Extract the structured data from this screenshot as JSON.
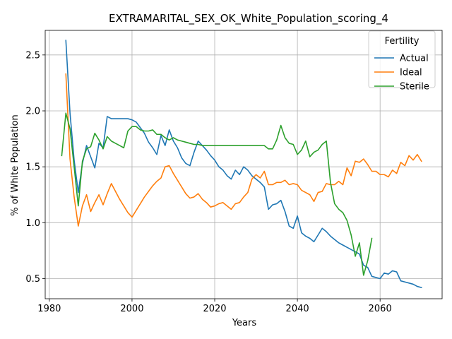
{
  "chart_data": {
    "type": "line",
    "title": "EXTRAMARITAL_SEX_OK_White_Population_scoring_4",
    "xlabel": "Years",
    "ylabel": "% of White Population",
    "xlim": [
      1979,
      2075
    ],
    "ylim": [
      0.32,
      2.72
    ],
    "xticks": [
      1980,
      2000,
      2020,
      2040,
      2060
    ],
    "yticks": [
      0.5,
      1.0,
      1.5,
      2.0,
      2.5
    ],
    "ytick_labels": [
      "0.5",
      "1.0",
      "1.5",
      "2.0",
      "2.5"
    ],
    "grid": true,
    "legend": {
      "title": "Fertility",
      "position": "top-right"
    },
    "series": [
      {
        "name": "Actual",
        "color": "#1f77b4",
        "x": [
          1984,
          1985,
          1986,
          1987,
          1988,
          1989,
          1990,
          1991,
          1992,
          1993,
          1994,
          1995,
          1996,
          1997,
          1998,
          1999,
          2000,
          2001,
          2002,
          2003,
          2004,
          2005,
          2006,
          2007,
          2008,
          2009,
          2010,
          2011,
          2012,
          2013,
          2014,
          2015,
          2016,
          2017,
          2018,
          2019,
          2020,
          2021,
          2022,
          2023,
          2024,
          2025,
          2026,
          2027,
          2028,
          2029,
          2030,
          2031,
          2032,
          2033,
          2034,
          2035,
          2036,
          2037,
          2038,
          2039,
          2040,
          2041,
          2042,
          2043,
          2044,
          2045,
          2046,
          2047,
          2048,
          2049,
          2050,
          2051,
          2052,
          2053,
          2054,
          2055,
          2056,
          2057,
          2058,
          2059,
          2060,
          2061,
          2062,
          2063,
          2064,
          2065,
          2066,
          2067,
          2068,
          2069,
          2070
        ],
        "values": [
          2.63,
          1.98,
          1.56,
          1.27,
          1.53,
          1.69,
          1.59,
          1.49,
          1.71,
          1.67,
          1.95,
          1.93,
          1.93,
          1.93,
          1.93,
          1.93,
          1.92,
          1.9,
          1.85,
          1.8,
          1.72,
          1.67,
          1.61,
          1.78,
          1.69,
          1.83,
          1.73,
          1.67,
          1.58,
          1.53,
          1.51,
          1.63,
          1.73,
          1.69,
          1.65,
          1.6,
          1.56,
          1.5,
          1.47,
          1.42,
          1.39,
          1.47,
          1.43,
          1.5,
          1.47,
          1.42,
          1.39,
          1.36,
          1.32,
          1.12,
          1.16,
          1.17,
          1.2,
          1.1,
          0.97,
          0.95,
          1.06,
          0.91,
          0.88,
          0.86,
          0.83,
          0.89,
          0.95,
          0.92,
          0.88,
          0.85,
          0.82,
          0.8,
          0.78,
          0.76,
          0.74,
          0.72,
          0.62,
          0.6,
          0.52,
          0.51,
          0.5,
          0.55,
          0.54,
          0.57,
          0.56,
          0.48,
          0.47,
          0.46,
          0.45,
          0.43,
          0.42
        ]
      },
      {
        "name": "Ideal",
        "color": "#ff7f0e",
        "x": [
          1984,
          1985,
          1986,
          1987,
          1988,
          1989,
          1990,
          1991,
          1992,
          1993,
          1994,
          1995,
          1996,
          1997,
          1998,
          1999,
          2000,
          2001,
          2002,
          2003,
          2004,
          2005,
          2006,
          2007,
          2008,
          2009,
          2010,
          2011,
          2012,
          2013,
          2014,
          2015,
          2016,
          2017,
          2018,
          2019,
          2020,
          2021,
          2022,
          2023,
          2024,
          2025,
          2026,
          2027,
          2028,
          2029,
          2030,
          2031,
          2032,
          2033,
          2034,
          2035,
          2036,
          2037,
          2038,
          2039,
          2040,
          2041,
          2042,
          2043,
          2044,
          2045,
          2046,
          2047,
          2048,
          2049,
          2050,
          2051,
          2052,
          2053,
          2054,
          2055,
          2056,
          2057,
          2058,
          2059,
          2060,
          2061,
          2062,
          2063,
          2064,
          2065,
          2066,
          2067,
          2068,
          2069,
          2070
        ],
        "values": [
          2.33,
          1.57,
          1.23,
          0.97,
          1.15,
          1.25,
          1.1,
          1.18,
          1.25,
          1.16,
          1.26,
          1.35,
          1.28,
          1.21,
          1.15,
          1.09,
          1.05,
          1.11,
          1.17,
          1.23,
          1.28,
          1.33,
          1.37,
          1.4,
          1.5,
          1.51,
          1.44,
          1.38,
          1.32,
          1.26,
          1.22,
          1.23,
          1.26,
          1.21,
          1.18,
          1.14,
          1.15,
          1.17,
          1.18,
          1.15,
          1.12,
          1.17,
          1.18,
          1.23,
          1.27,
          1.39,
          1.43,
          1.4,
          1.46,
          1.34,
          1.34,
          1.36,
          1.36,
          1.38,
          1.34,
          1.35,
          1.34,
          1.29,
          1.27,
          1.25,
          1.19,
          1.27,
          1.28,
          1.35,
          1.34,
          1.34,
          1.37,
          1.34,
          1.49,
          1.42,
          1.55,
          1.54,
          1.57,
          1.52,
          1.46,
          1.46,
          1.43,
          1.43,
          1.41,
          1.47,
          1.44,
          1.54,
          1.51,
          1.6,
          1.56,
          1.61,
          1.55
        ]
      },
      {
        "name": "Sterile",
        "color": "#2ca02c",
        "x": [
          1983,
          1984,
          1985,
          1986,
          1987,
          1988,
          1989,
          1990,
          1991,
          1992,
          1993,
          1994,
          1995,
          1996,
          1997,
          1998,
          1999,
          2000,
          2001,
          2002,
          2003,
          2004,
          2005,
          2006,
          2007,
          2008,
          2009,
          2010,
          2011,
          2012,
          2013,
          2014,
          2015,
          2016,
          2017,
          2018,
          2019,
          2020,
          2021,
          2022,
          2023,
          2024,
          2025,
          2026,
          2027,
          2028,
          2029,
          2030,
          2031,
          2032,
          2033,
          2034,
          2035,
          2036,
          2037,
          2038,
          2039,
          2040,
          2041,
          2042,
          2043,
          2044,
          2045,
          2046,
          2047,
          2048,
          2049,
          2050,
          2051,
          2052,
          2053,
          2054,
          2055,
          2056,
          2057,
          2058
        ],
        "values": [
          1.6,
          1.98,
          1.84,
          1.5,
          1.15,
          1.55,
          1.66,
          1.68,
          1.8,
          1.74,
          1.66,
          1.77,
          1.73,
          1.71,
          1.69,
          1.67,
          1.82,
          1.86,
          1.86,
          1.83,
          1.82,
          1.82,
          1.83,
          1.79,
          1.79,
          1.76,
          1.74,
          1.76,
          1.74,
          1.73,
          1.72,
          1.71,
          1.7,
          1.7,
          1.69,
          1.69,
          1.69,
          1.69,
          1.69,
          1.69,
          1.69,
          1.69,
          1.69,
          1.69,
          1.69,
          1.69,
          1.69,
          1.69,
          1.69,
          1.69,
          1.66,
          1.66,
          1.74,
          1.87,
          1.76,
          1.71,
          1.7,
          1.61,
          1.65,
          1.73,
          1.59,
          1.63,
          1.65,
          1.7,
          1.73,
          1.36,
          1.17,
          1.12,
          1.09,
          1.02,
          0.89,
          0.7,
          0.82,
          0.53,
          0.66,
          0.86
        ]
      }
    ]
  }
}
